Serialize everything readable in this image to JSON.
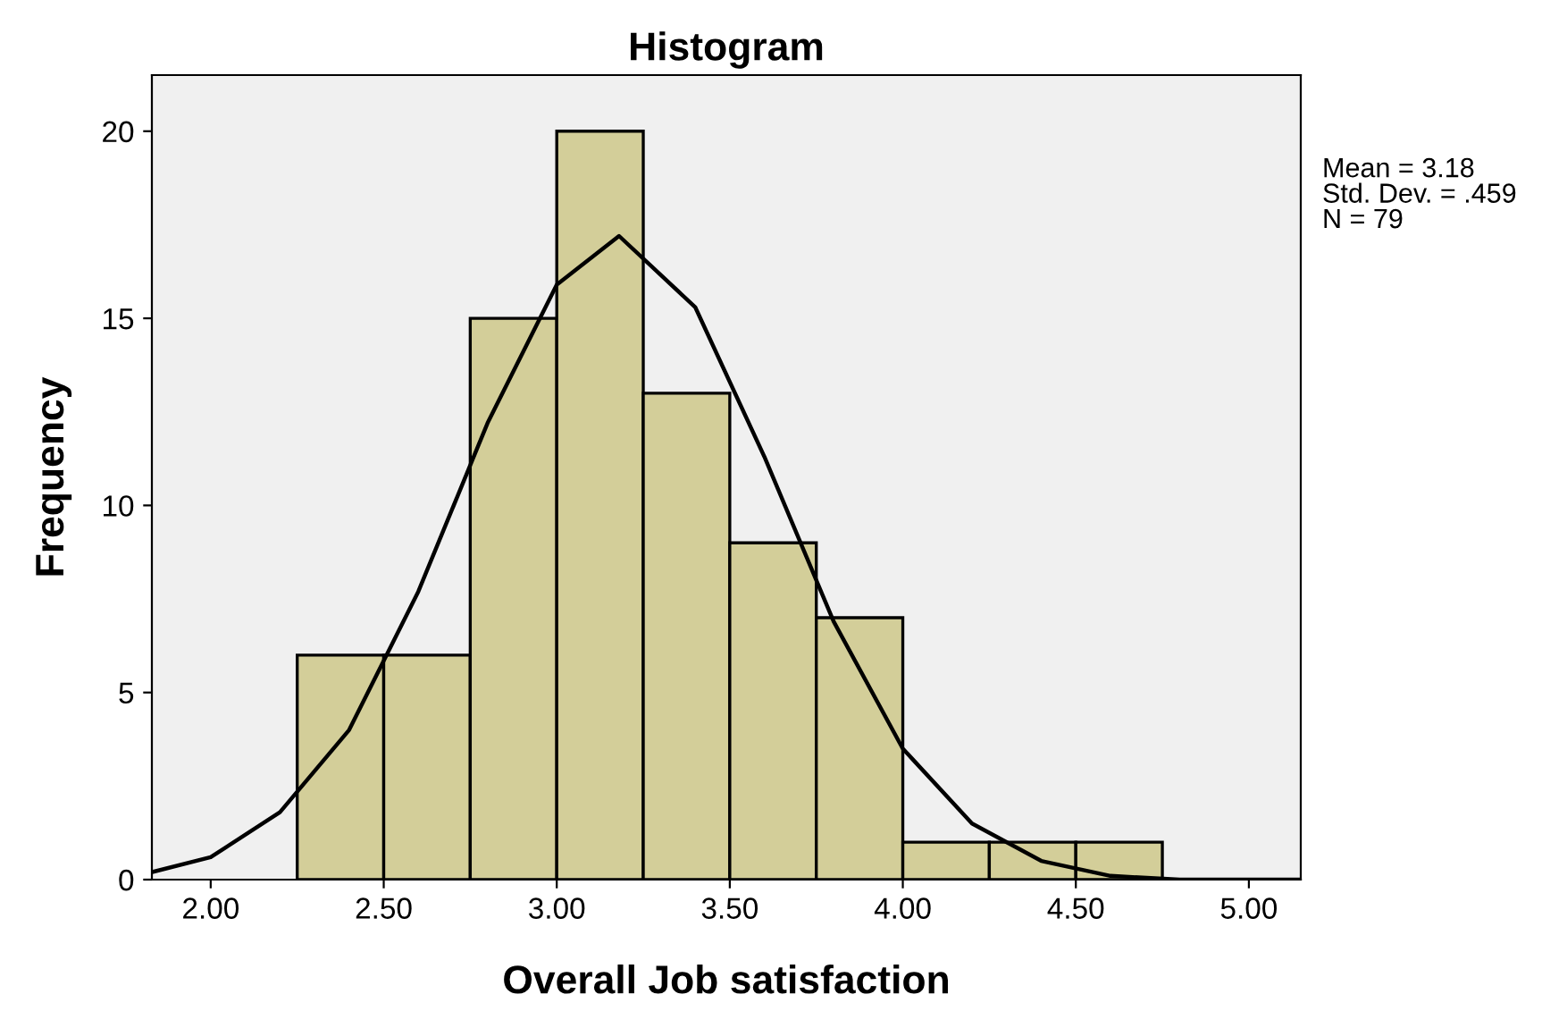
{
  "chart_data": {
    "type": "histogram",
    "title": "Histogram",
    "xlabel": "Overall Job satisfaction",
    "ylabel": "Frequency",
    "bins": [
      2.25,
      2.5,
      2.75,
      3.0,
      3.25,
      3.5,
      3.75,
      4.0,
      4.25,
      4.5,
      4.75
    ],
    "values": [
      6,
      6,
      15,
      20,
      13,
      9,
      7,
      1,
      1,
      1
    ],
    "color": "#d3ce99",
    "series": [
      {
        "type": "line",
        "color": "#000000",
        "x": [
          1.83,
          2.0,
          2.2,
          2.4,
          2.6,
          2.8,
          3.0,
          3.18,
          3.4,
          3.6,
          3.8,
          4.0,
          4.2,
          4.4,
          4.6,
          4.8,
          5.0,
          5.15
        ],
        "values": [
          0.2,
          0.6,
          1.8,
          4.0,
          7.7,
          12.2,
          15.9,
          17.2,
          15.3,
          11.3,
          6.9,
          3.5,
          1.5,
          0.5,
          0.1,
          0.0,
          0.0,
          0.0
        ]
      }
    ],
    "xlim": [
      1.83,
      5.15
    ],
    "ylim": [
      0,
      21.5
    ],
    "xticks": [
      {
        "value": 2,
        "label": "2.00"
      },
      {
        "value": 2.5,
        "label": "2.50"
      },
      {
        "value": 3,
        "label": "3.00"
      },
      {
        "value": 3.5,
        "label": "3.50"
      },
      {
        "value": 4,
        "label": "4.00"
      },
      {
        "value": 4.5,
        "label": "4.50"
      },
      {
        "value": 5,
        "label": "5.00"
      }
    ],
    "yticks": [
      0,
      5,
      10,
      15,
      20
    ],
    "grid": false,
    "annotations": [
      "Mean = 3.18\nStd. Dev. = .459\nN = 79"
    ]
  }
}
